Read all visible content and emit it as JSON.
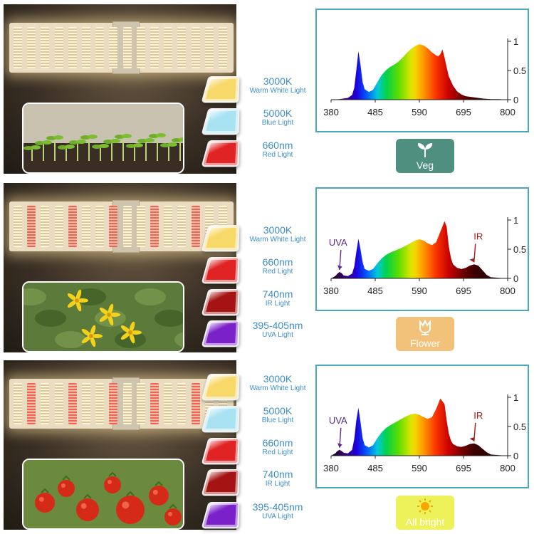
{
  "colors": {
    "accent": "#4aa8c3",
    "label_blue": "#3e8fc9",
    "uva": "#5a2a8a",
    "ir": "#a11d1d"
  },
  "chip_colors": {
    "3000K": "#f7d96a",
    "5000K": "#a9e3f2",
    "660nm": "#e02424",
    "740nm": "#a61313",
    "395-405nm": "#7a21c9"
  },
  "rows": [
    {
      "chips": [
        {
          "name": "3000K",
          "desc": "Warm White Light"
        },
        {
          "name": "5000K",
          "desc": "Blue Light"
        },
        {
          "name": "660nm",
          "desc": "Red Light"
        }
      ],
      "badge": {
        "label": "Veg",
        "icon": "sprout-icon",
        "color": "#4f8f80"
      }
    },
    {
      "chips": [
        {
          "name": "3000K",
          "desc": "Warm White Light"
        },
        {
          "name": "660nm",
          "desc": "Red Light"
        },
        {
          "name": "740nm",
          "desc": "IR Light"
        },
        {
          "name": "395-405nm",
          "desc": "UVA Light"
        }
      ],
      "badge": {
        "label": "Flower",
        "icon": "flower-icon",
        "color": "#f2c17a"
      }
    },
    {
      "chips": [
        {
          "name": "3000K",
          "desc": "Warm White Light"
        },
        {
          "name": "5000K",
          "desc": "Blue Light"
        },
        {
          "name": "660nm",
          "desc": "Red Light"
        },
        {
          "name": "740nm",
          "desc": "IR Light"
        },
        {
          "name": "395-405nm",
          "desc": "UVA Light"
        }
      ],
      "badge": {
        "label": "All bright",
        "icon": "sun-icon",
        "color": "#eef25a"
      }
    }
  ],
  "chart_data": [
    {
      "type": "area",
      "title": "",
      "xlabel": "",
      "ylabel": "",
      "xlim": [
        380,
        800
      ],
      "ylim": [
        0,
        1
      ],
      "x_ticks": [
        "380",
        "485",
        "590",
        "695",
        "800"
      ],
      "y_ticks": [
        "0",
        "0.5",
        "1"
      ],
      "grid": false,
      "fill": "visible-spectrum gradient",
      "series": [
        {
          "x": [
            380,
            400,
            420,
            430,
            435,
            440,
            445,
            450,
            455,
            460,
            470,
            480,
            490,
            500,
            510,
            520,
            530,
            540,
            550,
            560,
            570,
            580,
            590,
            600,
            610,
            620,
            630,
            635,
            640,
            645,
            650,
            655,
            660,
            670,
            680,
            690,
            700,
            720,
            740,
            760,
            780,
            800
          ],
          "values": [
            0,
            0.01,
            0.03,
            0.08,
            0.2,
            0.5,
            0.83,
            0.6,
            0.3,
            0.18,
            0.13,
            0.17,
            0.3,
            0.42,
            0.5,
            0.56,
            0.6,
            0.65,
            0.72,
            0.8,
            0.87,
            0.92,
            0.95,
            0.93,
            0.88,
            0.81,
            0.76,
            0.74,
            0.78,
            0.86,
            0.72,
            0.55,
            0.4,
            0.24,
            0.14,
            0.09,
            0.06,
            0.04,
            0.02,
            0.01,
            0.01,
            0
          ]
        }
      ],
      "annotations": []
    },
    {
      "type": "area",
      "title": "",
      "xlabel": "",
      "ylabel": "",
      "xlim": [
        380,
        800
      ],
      "ylim": [
        0,
        1
      ],
      "x_ticks": [
        "380",
        "485",
        "590",
        "695",
        "800"
      ],
      "y_ticks": [
        "0",
        "0.5",
        "1"
      ],
      "grid": false,
      "fill": "visible-spectrum gradient",
      "series": [
        {
          "x": [
            380,
            390,
            395,
            400,
            405,
            410,
            420,
            430,
            435,
            440,
            445,
            450,
            455,
            460,
            470,
            480,
            490,
            500,
            510,
            520,
            530,
            540,
            550,
            560,
            570,
            580,
            590,
            600,
            610,
            620,
            630,
            640,
            650,
            655,
            660,
            665,
            670,
            680,
            690,
            700,
            710,
            720,
            730,
            740,
            750,
            760,
            780,
            800
          ],
          "values": [
            0,
            0.04,
            0.08,
            0.11,
            0.09,
            0.05,
            0.04,
            0.08,
            0.2,
            0.45,
            0.68,
            0.5,
            0.28,
            0.16,
            0.13,
            0.16,
            0.26,
            0.34,
            0.4,
            0.44,
            0.47,
            0.5,
            0.53,
            0.57,
            0.61,
            0.65,
            0.67,
            0.65,
            0.6,
            0.57,
            0.62,
            0.8,
            0.98,
            0.88,
            0.55,
            0.35,
            0.24,
            0.18,
            0.16,
            0.18,
            0.22,
            0.24,
            0.22,
            0.14,
            0.06,
            0.02,
            0.01,
            0
          ]
        }
      ],
      "annotations": [
        {
          "text": "UVA",
          "x": 400,
          "y": 0.11
        },
        {
          "text": "IR",
          "x": 720,
          "y": 0.24
        }
      ]
    },
    {
      "type": "area",
      "title": "",
      "xlabel": "",
      "ylabel": "",
      "xlim": [
        380,
        800
      ],
      "ylim": [
        0,
        1
      ],
      "x_ticks": [
        "380",
        "485",
        "590",
        "695",
        "800"
      ],
      "y_ticks": [
        "0",
        "0.5",
        "1"
      ],
      "grid": false,
      "fill": "visible-spectrum gradient",
      "series": [
        {
          "x": [
            380,
            390,
            395,
            400,
            405,
            410,
            420,
            430,
            435,
            440,
            445,
            450,
            455,
            460,
            470,
            480,
            490,
            500,
            510,
            520,
            530,
            540,
            550,
            560,
            570,
            580,
            590,
            600,
            610,
            620,
            630,
            640,
            650,
            655,
            660,
            665,
            670,
            680,
            690,
            700,
            710,
            720,
            730,
            740,
            750,
            760,
            780,
            800
          ],
          "values": [
            0,
            0.04,
            0.08,
            0.1,
            0.08,
            0.05,
            0.04,
            0.1,
            0.28,
            0.6,
            0.82,
            0.58,
            0.3,
            0.18,
            0.14,
            0.18,
            0.3,
            0.4,
            0.47,
            0.52,
            0.56,
            0.6,
            0.64,
            0.68,
            0.71,
            0.72,
            0.7,
            0.66,
            0.63,
            0.66,
            0.8,
            0.98,
            0.88,
            0.6,
            0.38,
            0.26,
            0.2,
            0.16,
            0.15,
            0.17,
            0.2,
            0.21,
            0.18,
            0.12,
            0.06,
            0.02,
            0.01,
            0
          ]
        }
      ],
      "annotations": [
        {
          "text": "UVA",
          "x": 400,
          "y": 0.1
        },
        {
          "text": "IR",
          "x": 720,
          "y": 0.21
        }
      ]
    }
  ]
}
